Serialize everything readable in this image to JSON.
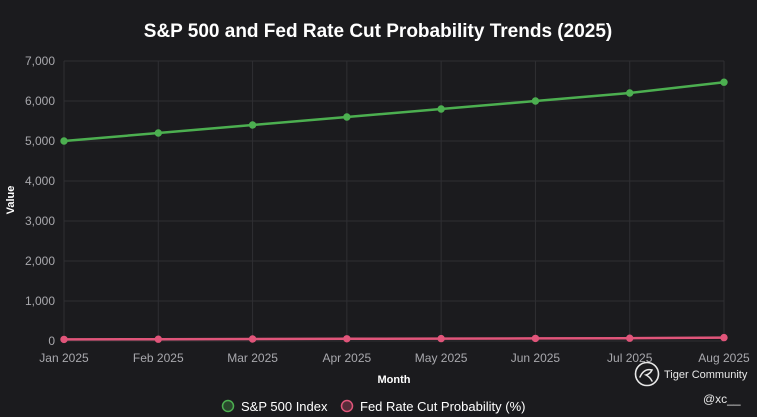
{
  "chart_data": {
    "type": "line",
    "title": "S&P 500 and Fed Rate Cut Probability Trends (2025)",
    "xlabel": "Month",
    "ylabel": "Value",
    "categories": [
      "Jan 2025",
      "Feb 2025",
      "Mar 2025",
      "Apr 2025",
      "May 2025",
      "Jun 2025",
      "Jul 2025",
      "Aug 2025"
    ],
    "ylim": [
      0,
      7000
    ],
    "yticks": [
      0,
      1000,
      2000,
      3000,
      4000,
      5000,
      6000,
      7000
    ],
    "ytick_labels": [
      "0",
      "1,000",
      "2,000",
      "3,000",
      "4,000",
      "5,000",
      "6,000",
      "7,000"
    ],
    "grid": true,
    "legend_position": "bottom-center",
    "series": [
      {
        "name": "S&P 500 Index",
        "color": "#4caf50",
        "values": [
          5000,
          5200,
          5400,
          5600,
          5800,
          6000,
          6200,
          6470
        ]
      },
      {
        "name": "Fed Rate Cut Probability (%)",
        "color": "#e0557a",
        "values": [
          40,
          45,
          50,
          55,
          60,
          65,
          70,
          85
        ]
      }
    ]
  },
  "watermark": {
    "brand": "Tiger Community",
    "handle": "@xc__",
    "icon": "tiger-logo-icon"
  }
}
